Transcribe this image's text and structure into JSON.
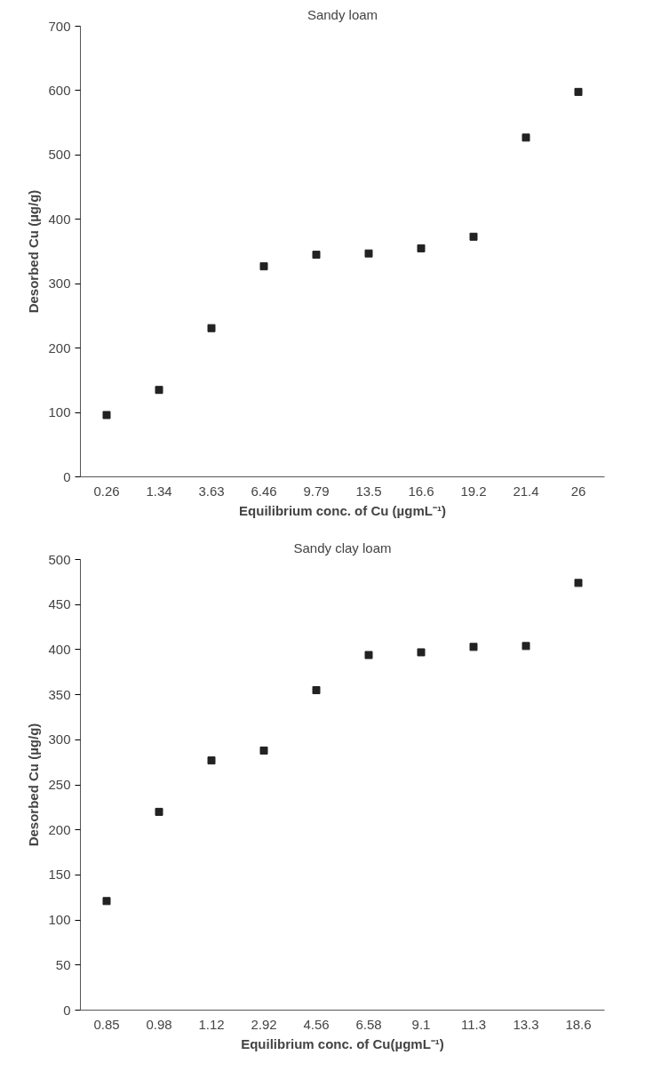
{
  "chart_data": [
    {
      "type": "scatter",
      "title": "Sandy loam",
      "xlabel": "Equilibrium conc. of Cu (µgmL⁻¹)",
      "ylabel": "Desorbed Cu (µg/g)",
      "categories": [
        "0.26",
        "1.34",
        "3.63",
        "6.46",
        "9.79",
        "13.5",
        "16.6",
        "19.2",
        "21.4",
        "26"
      ],
      "series": [
        {
          "color": "#222222",
          "values": [
            96,
            135,
            231,
            327,
            345,
            347,
            355,
            373,
            527,
            598
          ]
        }
      ],
      "ylim": [
        0,
        700
      ],
      "yticks": [
        0,
        100,
        200,
        300,
        400,
        500,
        600,
        700
      ],
      "grid": false,
      "marker": "square"
    },
    {
      "type": "scatter",
      "title": "Sandy clay loam",
      "xlabel": "Equilibrium conc. of Cu(µgmL⁻¹)",
      "ylabel": "Desorbed Cu (µg/g)",
      "categories": [
        "0.85",
        "0.98",
        "1.12",
        "2.92",
        "4.56",
        "6.58",
        "9.1",
        "11.3",
        "13.3",
        "18.6"
      ],
      "series": [
        {
          "color": "#222222",
          "values": [
            121,
            220,
            277,
            288,
            355,
            394,
            397,
            403,
            404,
            474
          ]
        }
      ],
      "ylim": [
        0,
        500
      ],
      "yticks": [
        0,
        50,
        100,
        150,
        200,
        250,
        300,
        350,
        400,
        450,
        500
      ],
      "grid": false,
      "marker": "square"
    }
  ]
}
